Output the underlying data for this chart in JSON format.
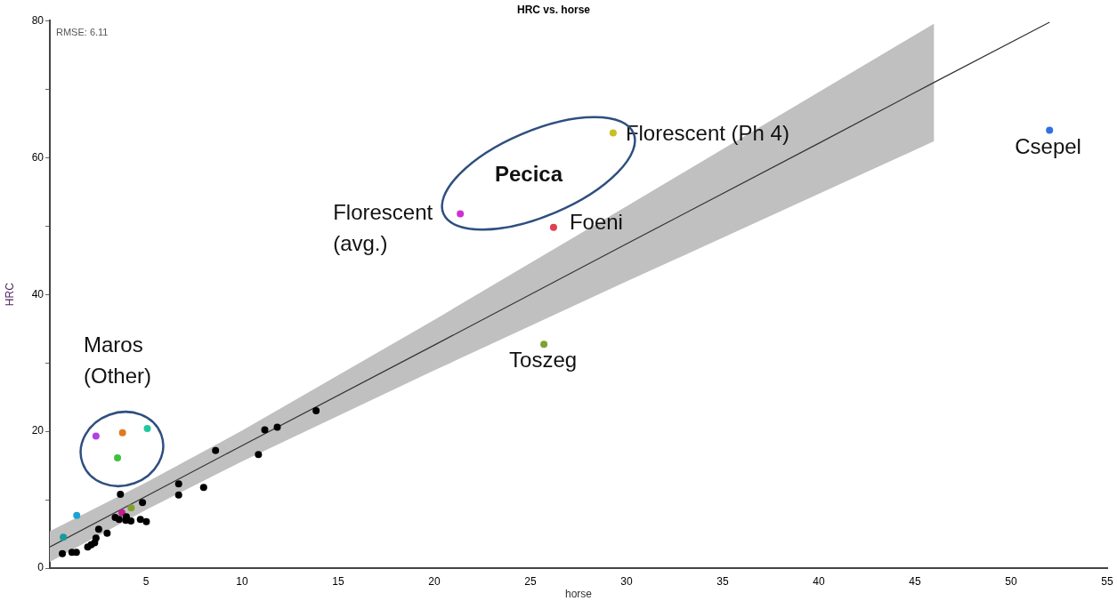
{
  "chart_data": {
    "type": "scatter",
    "title": "HRC vs. horse",
    "xlabel": "horse",
    "ylabel": "HRC",
    "xlim": [
      0,
      55
    ],
    "xticks": [
      5,
      10,
      15,
      20,
      25,
      30,
      35,
      40,
      45,
      50,
      55
    ],
    "ylim": [
      0,
      80
    ],
    "yticks": [
      0,
      {
        "value": 10,
        "label": null
      },
      20,
      {
        "value": 30,
        "label": null
      },
      40,
      {
        "value": 50,
        "label": null
      },
      60,
      {
        "value": 70,
        "label": null
      },
      80
    ],
    "grid": false,
    "legend": false,
    "marker": "circle",
    "series": [
      {
        "color": "#000000",
        "x": [
          0.65,
          1.15,
          1.38,
          1.97,
          2.15,
          2.33,
          2.4,
          2.54,
          2.98,
          3.4,
          3.6,
          3.67,
          3.98,
          3.95,
          4.22,
          4.71,
          4.82,
          5.02,
          6.7,
          6.7,
          8.0,
          8.62,
          10.85,
          11.18,
          11.83,
          13.85
        ],
        "values": [
          2.1,
          2.3,
          2.3,
          3.1,
          3.4,
          3.7,
          4.4,
          5.7,
          5.1,
          7.4,
          7.1,
          10.8,
          7.5,
          7.0,
          6.9,
          7.1,
          9.6,
          6.8,
          12.3,
          10.7,
          11.8,
          17.2,
          16.6,
          20.2,
          20.6,
          23.0
        ]
      },
      {
        "color": "#40c040",
        "x": [
          0.7,
          1.4,
          2.4,
          3.78,
          3.52,
          5.07,
          3.75,
          4.23,
          21.35,
          26.2,
          29.3,
          25.7,
          52.0
        ],
        "values": [
          4.5,
          7.7,
          19.3,
          19.8,
          16.1,
          20.4,
          8.1,
          8.8,
          51.8,
          49.8,
          63.6,
          32.7,
          64.0
        ],
        "colors": [
          "#1a9a9a",
          "#1ca3d4",
          "#b040e8",
          "#e07a20",
          "#40c040",
          "#20c8a0",
          "#c0208a",
          "#80a030",
          "#d030d0",
          "#e04050",
          "#c8c020",
          "#80a030",
          "#3070e0"
        ]
      },
      {
        "type": "line",
        "color": "#333333",
        "marker": "none",
        "x": [
          0,
          5,
          10,
          20,
          30,
          40,
          46,
          52
        ],
        "values": [
          3.1,
          10.5,
          17.9,
          32.6,
          47.4,
          62.1,
          71.0,
          79.8
        ],
        "lower": [
          0.9,
          8.5,
          15.6,
          28.9,
          41.9,
          54.7,
          62.4,
          null
        ],
        "upper": [
          5.4,
          12.5,
          20.1,
          36.3,
          52.9,
          69.6,
          79.6,
          null
        ]
      }
    ],
    "annotations": [
      "RMSE: 6.11",
      "Pecica",
      "Maros\n(Other)",
      {
        "text": "Florescent (Ph 4)",
        "x": 29.3,
        "y": 63.6
      },
      {
        "text": "Csepel",
        "x": 52.0,
        "y": 64.0
      },
      {
        "text": "Florescent\n(avg.)",
        "x": 21.35,
        "y": 51.8
      },
      {
        "text": "Foeni",
        "x": 26.2,
        "y": 49.8
      },
      {
        "text": "Toszeg",
        "x": 25.7,
        "y": 32.7
      }
    ]
  }
}
